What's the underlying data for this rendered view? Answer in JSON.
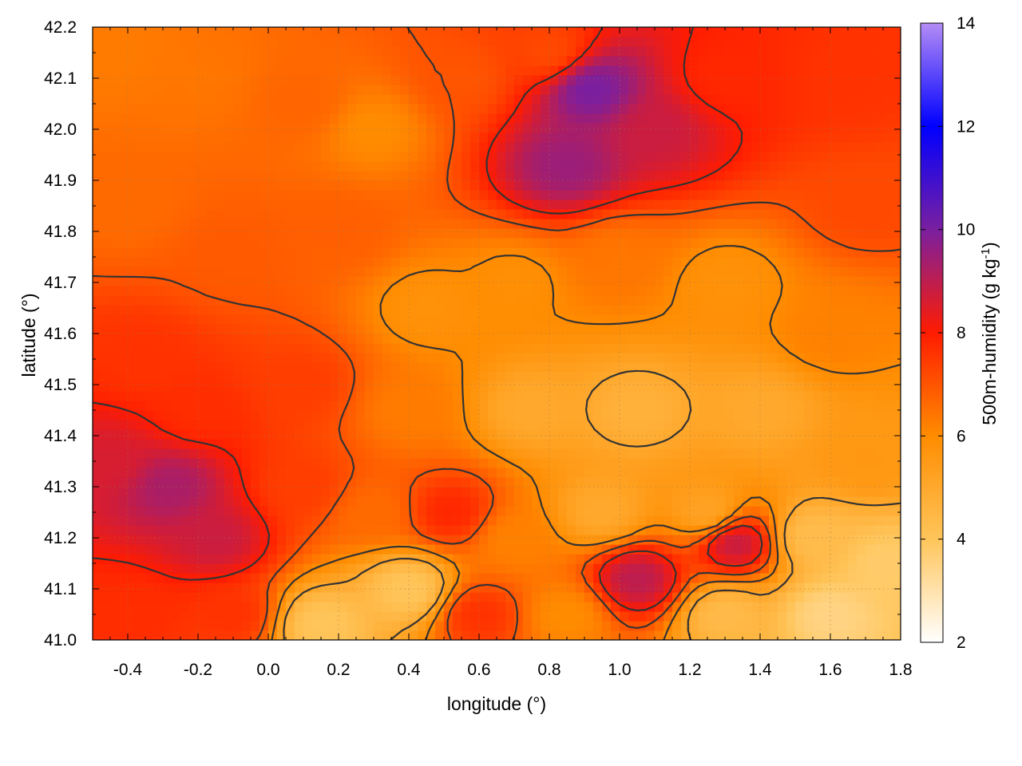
{
  "chart_data": {
    "type": "heatmap",
    "xlabel": "longitude (°)",
    "ylabel": "latitude (°)",
    "colorbar_label": "500m-humidity (g kg",
    "colorbar_label_sup": "-1",
    "colorbar_label_end": ")",
    "xlim": [
      -0.5,
      1.8
    ],
    "ylim": [
      41.0,
      42.2
    ],
    "zlim": [
      2,
      14
    ],
    "x_ticks": [
      -0.4,
      -0.2,
      0.0,
      0.2,
      0.4,
      0.6,
      0.8,
      1.0,
      1.2,
      1.4,
      1.6,
      1.8
    ],
    "x_tick_labels": [
      "-0.4",
      "-0.2",
      "0.0",
      "0.2",
      "0.4",
      "0.6",
      "0.8",
      "1.0",
      "1.2",
      "1.4",
      "1.6",
      "1.8"
    ],
    "y_ticks": [
      41.0,
      41.1,
      41.2,
      41.3,
      41.4,
      41.5,
      41.6,
      41.7,
      41.8,
      41.9,
      42.0,
      42.1,
      42.2
    ],
    "y_tick_labels": [
      "41.0",
      "41.1",
      "41.2",
      "41.3",
      "41.4",
      "41.5",
      "41.6",
      "41.7",
      "41.8",
      "41.9",
      "42.0",
      "42.1",
      "42.2"
    ],
    "colorbar_ticks": [
      2,
      4,
      6,
      8,
      10,
      12,
      14
    ],
    "colorbar_tick_labels": [
      "2",
      "4",
      "6",
      "8",
      "10",
      "12",
      "14"
    ],
    "colormap": [
      "#ffffff",
      "#ffc55a",
      "#ff8c00",
      "#ff1c00",
      "#7a1fa0",
      "#0000ff",
      "#b48cf5"
    ],
    "grid": true,
    "contour_color": "#333333",
    "field_samples": [
      {
        "lon": -0.45,
        "lat": 42.15,
        "q": 6.3
      },
      {
        "lon": -0.2,
        "lat": 42.1,
        "q": 6.4
      },
      {
        "lon": 0.1,
        "lat": 42.05,
        "q": 6.7
      },
      {
        "lon": 0.3,
        "lat": 42.0,
        "q": 6.0
      },
      {
        "lon": 0.55,
        "lat": 42.1,
        "q": 7.0
      },
      {
        "lon": 0.8,
        "lat": 42.15,
        "q": 7.2
      },
      {
        "lon": 0.92,
        "lat": 42.08,
        "q": 10.0
      },
      {
        "lon": 0.85,
        "lat": 41.93,
        "q": 9.5
      },
      {
        "lon": 1.1,
        "lat": 42.0,
        "q": 8.8
      },
      {
        "lon": 1.3,
        "lat": 42.1,
        "q": 7.8
      },
      {
        "lon": 1.65,
        "lat": 42.1,
        "q": 7.6
      },
      {
        "lon": 1.7,
        "lat": 41.85,
        "q": 7.2
      },
      {
        "lon": -0.4,
        "lat": 41.85,
        "q": 6.6
      },
      {
        "lon": -0.1,
        "lat": 41.75,
        "q": 6.9
      },
      {
        "lon": 0.2,
        "lat": 41.8,
        "q": 6.8
      },
      {
        "lon": 0.45,
        "lat": 41.65,
        "q": 5.8
      },
      {
        "lon": 0.7,
        "lat": 41.7,
        "q": 5.9
      },
      {
        "lon": 1.0,
        "lat": 41.75,
        "q": 6.4
      },
      {
        "lon": 1.3,
        "lat": 41.7,
        "q": 5.8
      },
      {
        "lon": 1.6,
        "lat": 41.6,
        "q": 6.2
      },
      {
        "lon": -0.35,
        "lat": 41.55,
        "q": 7.6
      },
      {
        "lon": -0.2,
        "lat": 41.45,
        "q": 7.7
      },
      {
        "lon": 0.1,
        "lat": 41.5,
        "q": 7.4
      },
      {
        "lon": 0.4,
        "lat": 41.45,
        "q": 6.3
      },
      {
        "lon": 0.75,
        "lat": 41.45,
        "q": 5.0
      },
      {
        "lon": 1.05,
        "lat": 41.45,
        "q": 4.7
      },
      {
        "lon": 1.4,
        "lat": 41.45,
        "q": 5.0
      },
      {
        "lon": 1.7,
        "lat": 41.35,
        "q": 5.6
      },
      {
        "lon": -0.45,
        "lat": 41.35,
        "q": 8.6
      },
      {
        "lon": -0.28,
        "lat": 41.3,
        "q": 9.3
      },
      {
        "lon": -0.15,
        "lat": 41.2,
        "q": 8.8
      },
      {
        "lon": 0.1,
        "lat": 41.3,
        "q": 7.4
      },
      {
        "lon": 0.3,
        "lat": 41.25,
        "q": 6.6
      },
      {
        "lon": 0.52,
        "lat": 41.25,
        "q": 7.8
      },
      {
        "lon": 0.7,
        "lat": 41.2,
        "q": 6.2
      },
      {
        "lon": 0.95,
        "lat": 41.25,
        "q": 5.0
      },
      {
        "lon": 1.25,
        "lat": 41.25,
        "q": 5.2
      },
      {
        "lon": 1.55,
        "lat": 41.2,
        "q": 4.3
      },
      {
        "lon": 1.75,
        "lat": 41.15,
        "q": 3.8
      },
      {
        "lon": -0.4,
        "lat": 41.05,
        "q": 7.7
      },
      {
        "lon": -0.1,
        "lat": 41.05,
        "q": 7.6
      },
      {
        "lon": 0.15,
        "lat": 41.03,
        "q": 4.0
      },
      {
        "lon": 0.4,
        "lat": 41.1,
        "q": 4.0
      },
      {
        "lon": 0.6,
        "lat": 41.05,
        "q": 7.6
      },
      {
        "lon": 0.85,
        "lat": 41.05,
        "q": 6.0
      },
      {
        "lon": 1.05,
        "lat": 41.12,
        "q": 9.0
      },
      {
        "lon": 1.3,
        "lat": 41.05,
        "q": 4.4
      },
      {
        "lon": 1.6,
        "lat": 41.05,
        "q": 3.5
      },
      {
        "lon": 1.33,
        "lat": 41.19,
        "q": 8.8
      }
    ]
  }
}
